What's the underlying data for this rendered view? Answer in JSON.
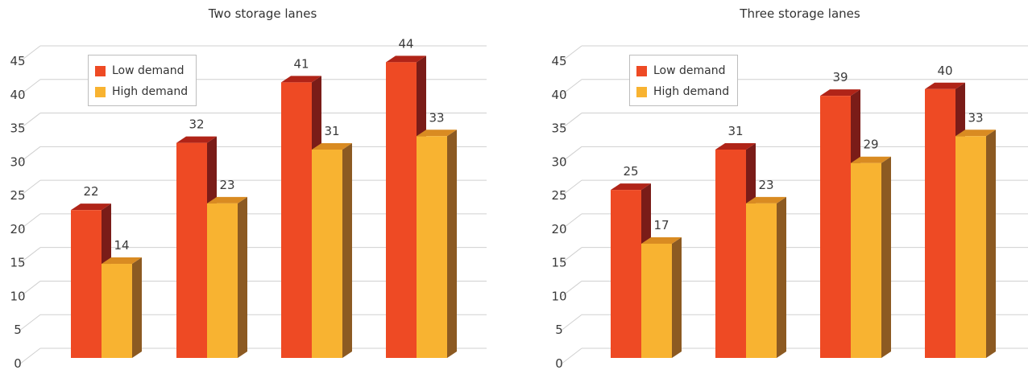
{
  "colors": {
    "low_front": "#ee4a24",
    "low_top": "#b02418",
    "low_side": "#7a1c18",
    "high_front": "#f8b331",
    "high_top": "#d98b22",
    "high_side": "#8c5a22",
    "grid": "#d0d0d0"
  },
  "chart_data": [
    {
      "type": "bar",
      "title": "Two storage lanes",
      "categories": [
        "",
        "",
        "",
        ""
      ],
      "series": [
        {
          "name": "Low demand",
          "values": [
            22,
            32,
            41,
            44
          ]
        },
        {
          "name": "High demand",
          "values": [
            14,
            23,
            31,
            33
          ]
        }
      ],
      "ylim": [
        0,
        45
      ],
      "yticks": [
        "0",
        "5",
        "10",
        "15",
        "20",
        "25",
        "30",
        "35",
        "40",
        "45"
      ],
      "grid": true,
      "legend": "top-left"
    },
    {
      "type": "bar",
      "title": "Three storage lanes",
      "categories": [
        "",
        "",
        "",
        ""
      ],
      "series": [
        {
          "name": "Low demand",
          "values": [
            25,
            31,
            39,
            40
          ]
        },
        {
          "name": "High demand",
          "values": [
            17,
            23,
            29,
            33
          ]
        }
      ],
      "ylim": [
        0,
        45
      ],
      "yticks": [
        "0",
        "5",
        "10",
        "15",
        "20",
        "25",
        "30",
        "35",
        "40",
        "45"
      ],
      "grid": true,
      "legend": "top-left"
    }
  ]
}
